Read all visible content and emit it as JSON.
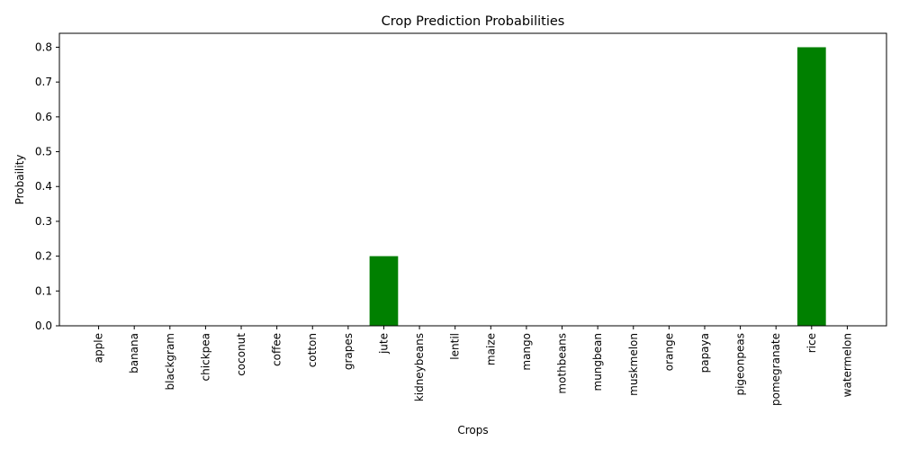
{
  "chart_data": {
    "type": "bar",
    "title": "Crop Prediction Probabilities",
    "xlabel": "Crops",
    "ylabel": "Probaility",
    "categories": [
      "apple",
      "banana",
      "blackgram",
      "chickpea",
      "coconut",
      "coffee",
      "cotton",
      "grapes",
      "jute",
      "kidneybeans",
      "lentil",
      "maize",
      "mango",
      "mothbeans",
      "mungbean",
      "muskmelon",
      "orange",
      "papaya",
      "pigeonpeas",
      "pomegranate",
      "rice",
      "watermelon"
    ],
    "values": [
      0,
      0,
      0,
      0,
      0,
      0,
      0,
      0,
      0.2,
      0,
      0,
      0,
      0,
      0,
      0,
      0,
      0,
      0,
      0,
      0,
      0.8,
      0
    ],
    "ylim": [
      0,
      0.84
    ],
    "yticks": [
      "0.0",
      "0.1",
      "0.2",
      "0.3",
      "0.4",
      "0.5",
      "0.6",
      "0.7",
      "0.8"
    ],
    "bar_color": "#008000",
    "grid": false,
    "legend": "none"
  }
}
